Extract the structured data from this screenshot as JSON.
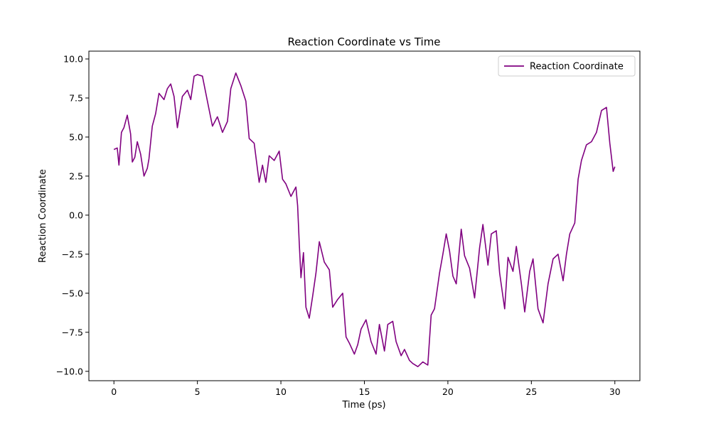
{
  "chart_data": {
    "type": "line",
    "title": "Reaction Coordinate vs Time",
    "xlabel": "Time (ps)",
    "ylabel": "Reaction Coordinate",
    "xlim": [
      -1.5,
      31.5
    ],
    "ylim": [
      -10.6,
      10.5
    ],
    "xticks": [
      0,
      5,
      10,
      15,
      20,
      25,
      30
    ],
    "xtick_labels": [
      "0",
      "5",
      "10",
      "15",
      "20",
      "25",
      "30"
    ],
    "yticks": [
      -10.0,
      -7.5,
      -5.0,
      -2.5,
      0.0,
      2.5,
      5.0,
      7.5,
      10.0
    ],
    "ytick_labels": [
      "−10.0",
      "−7.5",
      "−5.0",
      "−2.5",
      "0.0",
      "2.5",
      "5.0",
      "7.5",
      "10.0"
    ],
    "grid": false,
    "legend": {
      "placement": "top-right",
      "entries": [
        "Reaction Coordinate"
      ]
    },
    "series": [
      {
        "name": "Reaction Coordinate",
        "color": "#800080",
        "x": [
          0,
          0.2,
          0.3,
          0.45,
          0.6,
          0.8,
          1.0,
          1.1,
          1.25,
          1.4,
          1.6,
          1.8,
          2.0,
          2.1,
          2.3,
          2.5,
          2.7,
          3.0,
          3.2,
          3.4,
          3.6,
          3.8,
          4.1,
          4.4,
          4.6,
          4.8,
          5.0,
          5.3,
          5.6,
          5.9,
          6.2,
          6.5,
          6.8,
          7.0,
          7.3,
          7.6,
          7.9,
          8.1,
          8.4,
          8.7,
          8.9,
          9.1,
          9.3,
          9.6,
          9.9,
          10.1,
          10.3,
          10.6,
          10.9,
          11.0,
          11.1,
          11.2,
          11.35,
          11.5,
          11.7,
          11.9,
          12.1,
          12.3,
          12.6,
          12.9,
          13.1,
          13.4,
          13.7,
          13.9,
          14.1,
          14.4,
          14.6,
          14.8,
          15.1,
          15.4,
          15.7,
          15.9,
          16.2,
          16.4,
          16.7,
          16.9,
          17.2,
          17.4,
          17.7,
          17.9,
          18.2,
          18.5,
          18.8,
          19.0,
          19.2,
          19.5,
          19.7,
          19.9,
          20.1,
          20.3,
          20.5,
          20.8,
          21.0,
          21.3,
          21.6,
          21.9,
          22.1,
          22.4,
          22.6,
          22.9,
          23.1,
          23.4,
          23.6,
          23.9,
          24.1,
          24.4,
          24.6,
          24.9,
          25.1,
          25.4,
          25.7,
          26.0,
          26.3,
          26.6,
          26.9,
          27.1,
          27.3,
          27.6,
          27.8,
          28.0,
          28.3,
          28.6,
          28.9,
          29.2,
          29.5,
          29.7,
          29.9,
          30.0
        ],
        "values": [
          4.2,
          4.3,
          3.2,
          5.3,
          5.6,
          6.4,
          5.2,
          3.4,
          3.7,
          4.7,
          3.9,
          2.5,
          3.0,
          3.6,
          5.7,
          6.5,
          7.8,
          7.4,
          8.1,
          8.4,
          7.6,
          5.6,
          7.6,
          8.0,
          7.4,
          8.9,
          9.0,
          8.9,
          7.3,
          5.7,
          6.3,
          5.3,
          6.0,
          8.1,
          9.1,
          8.3,
          7.3,
          4.9,
          4.6,
          2.1,
          3.2,
          2.1,
          3.8,
          3.5,
          4.1,
          2.3,
          2.0,
          1.2,
          1.8,
          0.6,
          -1.8,
          -4.0,
          -2.4,
          -5.9,
          -6.6,
          -5.2,
          -3.7,
          -1.7,
          -3.0,
          -3.5,
          -5.9,
          -5.4,
          -5.0,
          -7.8,
          -8.2,
          -8.9,
          -8.3,
          -7.3,
          -6.7,
          -8.1,
          -8.9,
          -7.0,
          -8.7,
          -7.0,
          -6.8,
          -8.1,
          -9.0,
          -8.6,
          -9.3,
          -9.5,
          -9.7,
          -9.4,
          -9.6,
          -6.4,
          -6.0,
          -3.7,
          -2.5,
          -1.2,
          -2.3,
          -3.9,
          -4.4,
          -0.9,
          -2.6,
          -3.4,
          -5.3,
          -2.1,
          -0.6,
          -3.2,
          -1.2,
          -1.0,
          -3.7,
          -6.0,
          -2.7,
          -3.6,
          -2.0,
          -4.4,
          -6.2,
          -3.6,
          -2.8,
          -6.0,
          -6.9,
          -4.4,
          -2.8,
          -2.5,
          -4.2,
          -2.5,
          -1.2,
          -0.5,
          2.3,
          3.5,
          4.5,
          4.7,
          5.3,
          6.7,
          6.9,
          4.6,
          2.8,
          3.1
        ]
      }
    ]
  }
}
